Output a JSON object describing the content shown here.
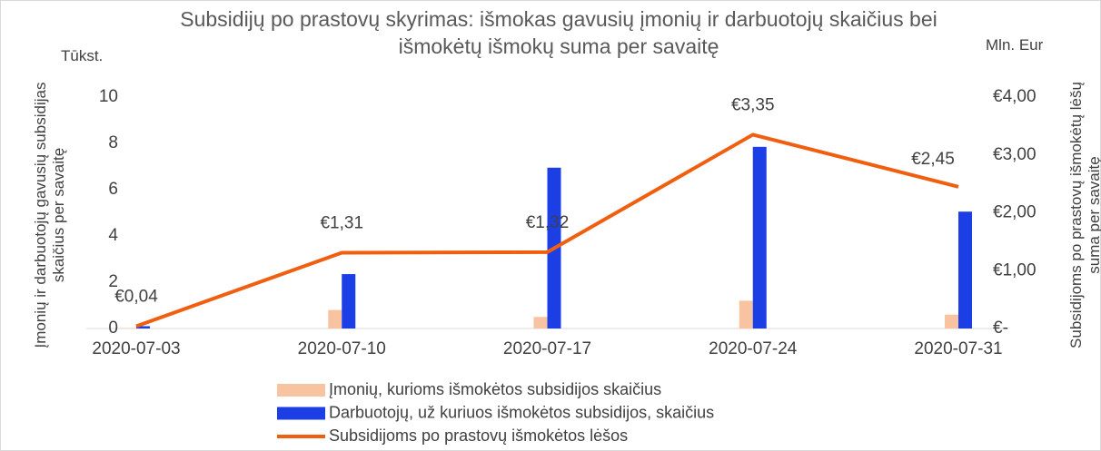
{
  "chart_data": {
    "type": "bar_line",
    "title": "Subsidijų po prastovų skyrimas: išmokas gavusių įmonių ir darbuotojų skaičius bei išmokėtų išmokų suma per savaitę",
    "y_unit": "Tūkst.",
    "y2_unit": "Mln. Eur",
    "ylabel": "Įmonių ir darbuotojų gavusių subsidijas skaičius per savaitę",
    "y2label": "Subsidijoms po prastovų išmokėtų lėšų suma per savaitę",
    "categories": [
      "2020-07-03",
      "2020-07-10",
      "2020-07-17",
      "2020-07-24",
      "2020-07-31"
    ],
    "series": [
      {
        "name": "Įmonių, kurioms išmokėtos subsidijos skaičius",
        "type": "bar",
        "color": "#f8c3a0",
        "values": [
          0.02,
          0.8,
          0.5,
          1.2,
          0.6
        ]
      },
      {
        "name": "Darbuotojų, už kuriuos išmokėtos subsidijos, skaičius",
        "type": "bar",
        "color": "#1b3fe4",
        "values": [
          0.1,
          2.35,
          6.95,
          7.85,
          5.05
        ]
      },
      {
        "name": "Subsidijoms po prastovų išmokėtos lėšos",
        "type": "line",
        "axis": "y2",
        "color": "#f05f10",
        "values": [
          0.04,
          1.31,
          1.32,
          3.35,
          2.45
        ],
        "value_labels": [
          "€0,04",
          "€1,31",
          "€1,32",
          "€3,35",
          "€2,45"
        ]
      }
    ],
    "ylim": [
      0,
      10
    ],
    "yticks": [
      0,
      2,
      4,
      6,
      8,
      10
    ],
    "y2lim": [
      0,
      4
    ],
    "y2ticks": [
      {
        "value": 0,
        "label": "€-"
      },
      {
        "value": 1,
        "label": "€1,00"
      },
      {
        "value": 2,
        "label": "€2,00"
      },
      {
        "value": 3,
        "label": "€3,00"
      },
      {
        "value": 4,
        "label": "€4,00"
      }
    ],
    "legend": "bottom"
  }
}
